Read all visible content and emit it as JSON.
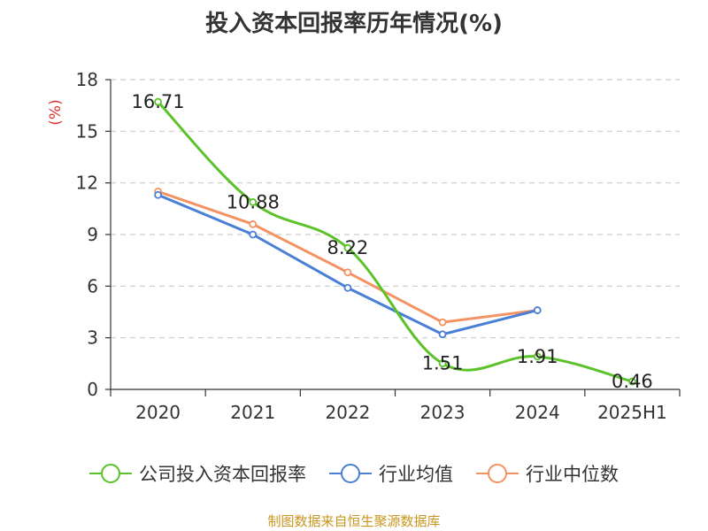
{
  "title": "投入资本回报率历年情况(%)",
  "source": "制图数据来自恒生聚源数据库",
  "chart_data": {
    "type": "line",
    "title": "投入资本回报率历年情况(%)",
    "ylabel": "(%)",
    "xlabel": "",
    "categories": [
      "2020",
      "2021",
      "2022",
      "2023",
      "2024",
      "2025H1"
    ],
    "ylim": [
      0,
      18
    ],
    "yticks": [
      0,
      3,
      6,
      9,
      12,
      15,
      18
    ],
    "grid": true,
    "legend_position": "bottom",
    "series": [
      {
        "name": "公司投入资本回报率",
        "color": "#5cc22a",
        "values": [
          16.71,
          10.88,
          8.22,
          1.51,
          1.91,
          0.46
        ],
        "labels": [
          "16.71",
          "10.88",
          "8.22",
          "1.51",
          "1.91",
          "0.46"
        ],
        "smooth": true
      },
      {
        "name": "行业均值",
        "color": "#4a7fd6",
        "values": [
          11.3,
          9.0,
          5.9,
          3.2,
          4.6,
          null
        ],
        "smooth": false
      },
      {
        "name": "行业中位数",
        "color": "#f39262",
        "values": [
          11.5,
          9.6,
          6.8,
          3.9,
          4.6,
          null
        ],
        "smooth": false
      }
    ]
  }
}
